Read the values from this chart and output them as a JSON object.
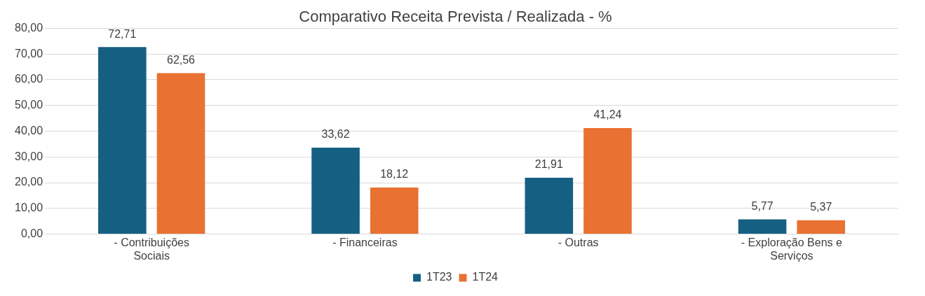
{
  "chart_data": {
    "type": "bar",
    "title": "Comparativo Receita Prevista / Realizada - %",
    "categories": [
      "- Contribuições Sociais",
      "- Financeiras",
      "- Outras",
      "- Exploração Bens e Serviços"
    ],
    "series": [
      {
        "name": "1T23",
        "color": "#156082",
        "values": [
          72.71,
          33.62,
          21.91,
          5.77
        ],
        "value_labels": [
          "72,71",
          "33,62",
          "21,91",
          "5,77"
        ]
      },
      {
        "name": "1T24",
        "color": "#e97132",
        "values": [
          62.56,
          18.12,
          41.24,
          5.37
        ],
        "value_labels": [
          "62,56",
          "18,12",
          "41,24",
          "5,37"
        ]
      }
    ],
    "ylim": [
      0,
      80
    ],
    "yticks": [
      {
        "value": 0,
        "label": "0,00"
      },
      {
        "value": 10,
        "label": "10,00"
      },
      {
        "value": 20,
        "label": "20,00"
      },
      {
        "value": 30,
        "label": "30,00"
      },
      {
        "value": 40,
        "label": "40,00"
      },
      {
        "value": 50,
        "label": "50,00"
      },
      {
        "value": 60,
        "label": "60,00"
      },
      {
        "value": 70,
        "label": "70,00"
      },
      {
        "value": 80,
        "label": "80,00"
      }
    ],
    "grid": "y",
    "legend": "bottom"
  }
}
